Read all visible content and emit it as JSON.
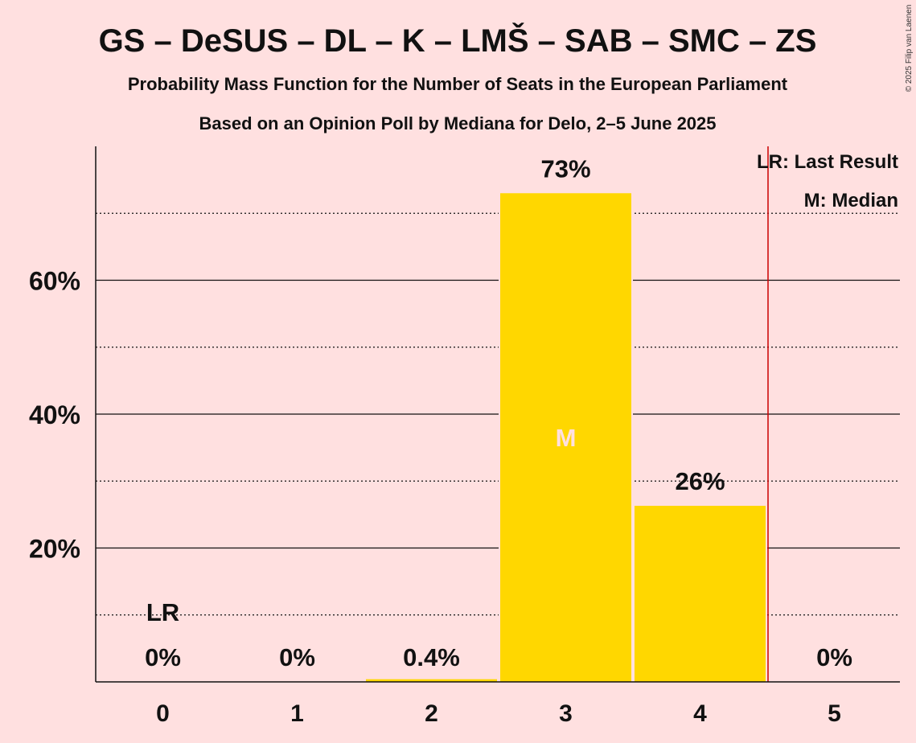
{
  "chart_data": {
    "type": "bar",
    "title": "GS – DeSUS – DL – K – LMŠ – SAB – SMC – ZS",
    "subtitle": "Probability Mass Function for the Number of Seats in the European Parliament",
    "subtitle2": "Based on an Opinion Poll by Mediana for Delo, 2–5 June 2025",
    "copyright": "© 2025 Filip van Laenen",
    "categories": [
      "0",
      "1",
      "2",
      "3",
      "4",
      "5"
    ],
    "values": [
      0,
      0,
      0.4,
      73,
      26.3,
      0
    ],
    "value_labels": [
      "0%",
      "0%",
      "0.4%",
      "73%",
      "26%",
      "0%"
    ],
    "ylim": [
      0,
      80
    ],
    "yticks": [
      20,
      40,
      60
    ],
    "ytick_labels": [
      "20%",
      "40%",
      "60%"
    ],
    "gridlines_solid": [
      20,
      40,
      60
    ],
    "gridlines_dotted": [
      10,
      30,
      50,
      70
    ],
    "bar_color": "#FFD700",
    "last_result": {
      "category": "0",
      "label": "LR"
    },
    "median": {
      "category": "3",
      "label": "M"
    },
    "last_result_line_after_category": "4",
    "last_result_line_color": "#CC0000",
    "legend": {
      "position": "top-right",
      "entries": [
        "LR: Last Result",
        "M: Median"
      ]
    }
  }
}
